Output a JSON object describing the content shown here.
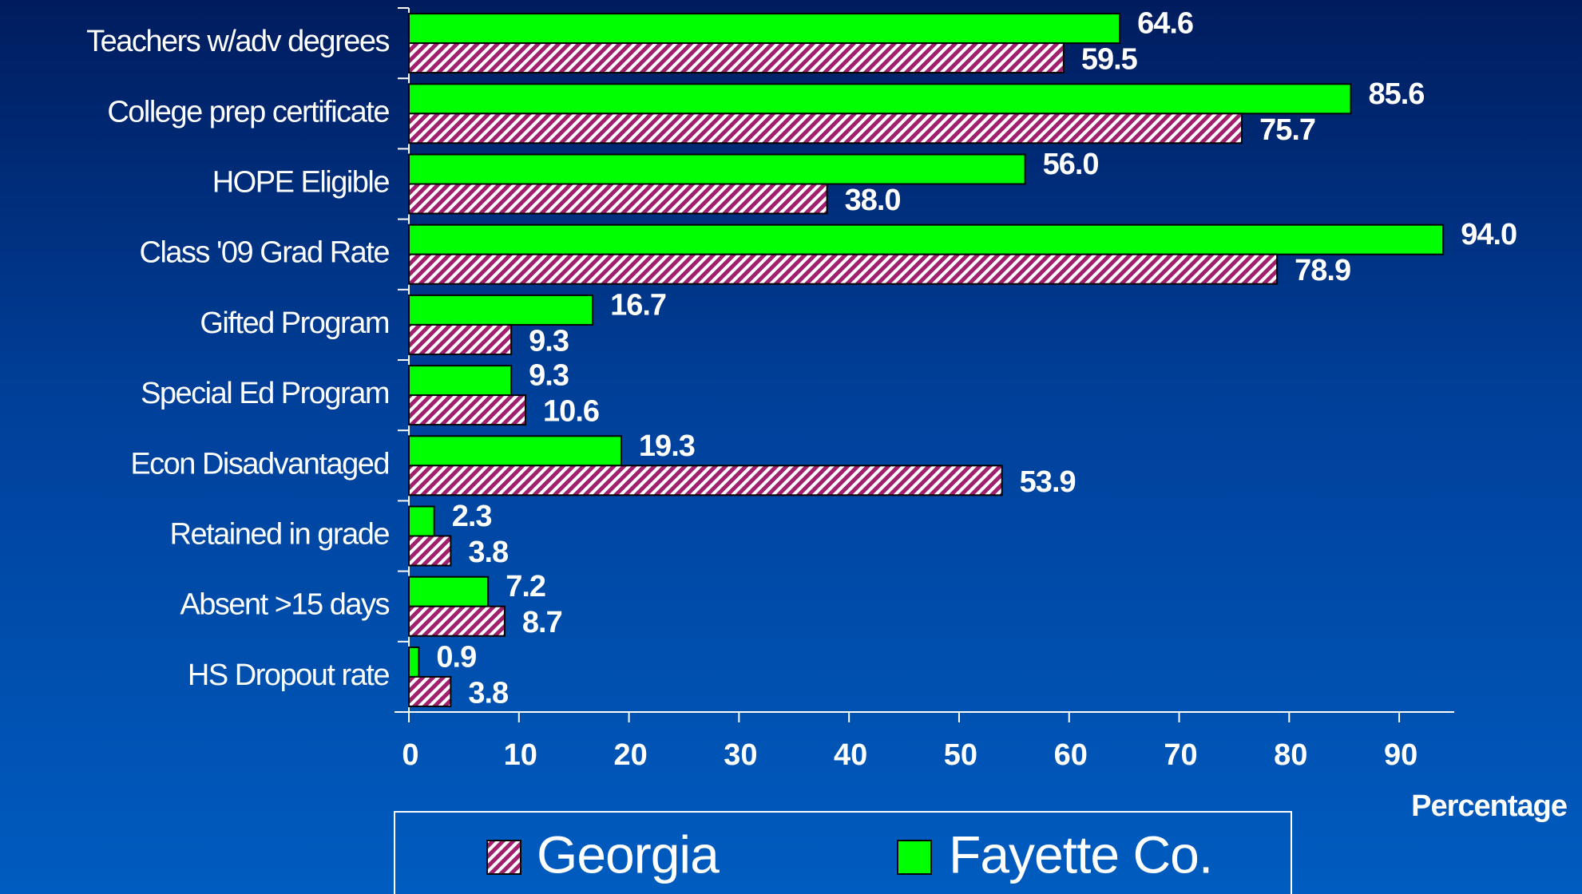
{
  "chart_data": {
    "type": "bar",
    "orientation": "horizontal",
    "x_label": "Percentage",
    "categories": [
      "Teachers w/adv degrees",
      "College prep certificate",
      "HOPE Eligible",
      "Class '09 Grad Rate",
      "Gifted Program",
      "Special Ed Program",
      "Econ Disadvantaged",
      "Retained in grade",
      "Absent >15 days",
      "HS Dropout rate"
    ],
    "series": [
      {
        "name": "Georgia",
        "color": "#a0206e",
        "pattern": "diagonal-stripes",
        "values": [
          59.5,
          75.7,
          38.0,
          78.9,
          9.3,
          10.6,
          53.9,
          3.8,
          8.7,
          3.8
        ],
        "value_labels": [
          "59.5",
          "75.7",
          "38.0",
          "78.9",
          "9.3",
          "10.6",
          "53.9",
          "3.8",
          "8.7",
          "3.8"
        ]
      },
      {
        "name": "Fayette Co.",
        "color": "#00ff00",
        "values": [
          64.6,
          85.6,
          56.0,
          94.0,
          16.7,
          9.3,
          19.3,
          2.3,
          7.2,
          0.9
        ],
        "value_labels": [
          "64.6",
          "85.6",
          "56.0",
          "94.0",
          "16.7",
          "9.3",
          "19.3",
          "2.3",
          "7.2",
          "0.9"
        ]
      }
    ],
    "xlim": [
      0,
      95
    ],
    "xticks": [
      0,
      10,
      20,
      30,
      40,
      50,
      60,
      70,
      80,
      90
    ],
    "grid": false
  }
}
